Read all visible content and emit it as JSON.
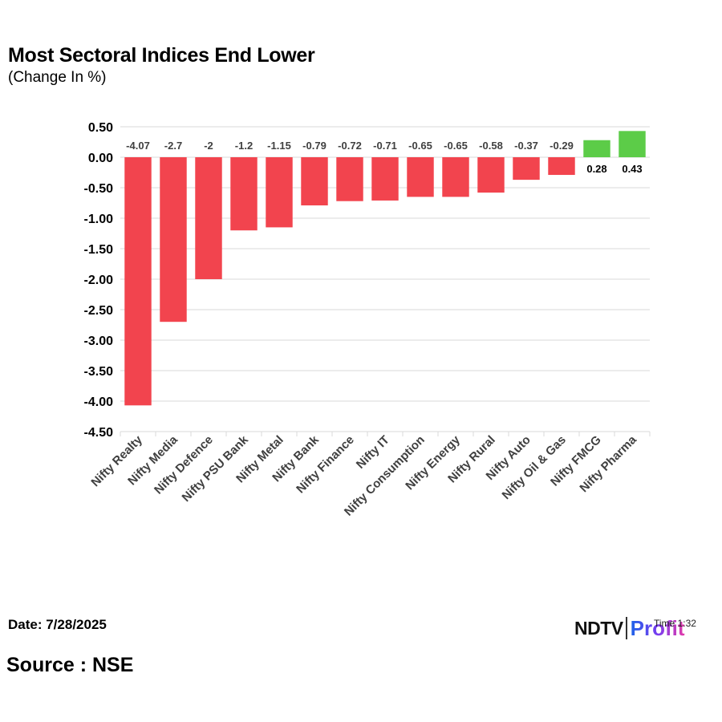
{
  "header": {
    "title": "Most Sectoral Indices End Lower",
    "subtitle": "(Change In %)"
  },
  "footer": {
    "date": "Date: 7/28/2025",
    "source": "Source : NSE"
  },
  "logo": {
    "ndtv": "NDTV",
    "profit": "Profit",
    "overlay": "Time 1:32"
  },
  "colors": {
    "negative": "#f2444e",
    "positive": "#5ccc48",
    "grid": "#d9d9d9"
  },
  "chart_data": {
    "type": "bar",
    "categories": [
      "Nifty Realty",
      "Nifty Media",
      "Nifty Defence",
      "Nifty PSU Bank",
      "Nifty Metal",
      "Nifty Bank",
      "Nifty Finance",
      "Nifty IT",
      "Nifty Consumption",
      "Nifty Energy",
      "Nifty Rural",
      "Nifty Auto",
      "Nifty Oil & Gas",
      "Nifty FMCG",
      "Nifty Pharma"
    ],
    "values": [
      -4.07,
      -2.7,
      -2,
      -1.2,
      -1.15,
      -0.79,
      -0.72,
      -0.71,
      -0.65,
      -0.65,
      -0.58,
      -0.37,
      -0.29,
      0.28,
      0.43
    ],
    "value_labels": [
      "-4.07",
      "-2.7",
      "-2",
      "-1.2",
      "-1.15",
      "-0.79",
      "-0.72",
      "-0.71",
      "-0.65",
      "-0.65",
      "-0.58",
      "-0.37",
      "-0.29",
      "0.28",
      "0.43"
    ],
    "title": "Most Sectoral Indices End Lower",
    "subtitle": "(Change In %)",
    "xlabel": "",
    "ylabel": "",
    "ylim": [
      -4.5,
      0.5
    ],
    "yticks": [
      "0.50",
      "0.00",
      "-0.50",
      "-1.00",
      "-1.50",
      "-2.00",
      "-2.50",
      "-3.00",
      "-3.50",
      "-4.00",
      "-4.50"
    ],
    "grid": true,
    "legend": "none"
  }
}
